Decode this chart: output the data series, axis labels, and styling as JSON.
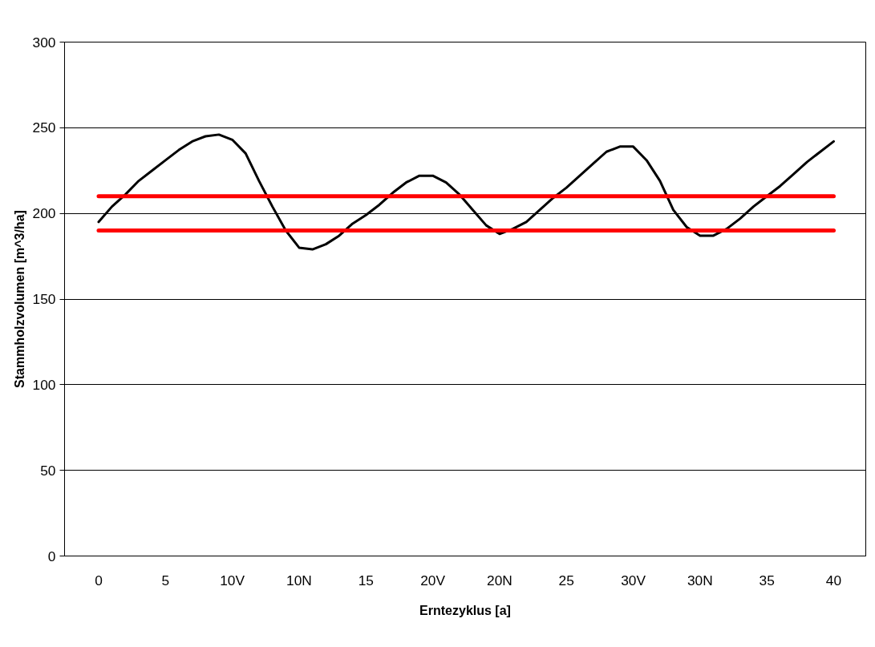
{
  "chart_data": {
    "type": "line",
    "xlabel": "Erntezyklus [a]",
    "ylabel": "Stammholzvolumen [m^3/ha]",
    "categories": [
      "0",
      null,
      null,
      null,
      null,
      "5",
      null,
      null,
      null,
      null,
      "10V",
      null,
      null,
      null,
      null,
      "10N",
      null,
      null,
      null,
      null,
      "15",
      null,
      null,
      null,
      null,
      "20V",
      null,
      null,
      null,
      null,
      "20N",
      null,
      null,
      null,
      null,
      "25",
      null,
      null,
      null,
      null,
      "30V",
      null,
      null,
      null,
      null,
      "30N",
      null,
      null,
      null,
      null,
      "35",
      null,
      null,
      null,
      null,
      "40"
    ],
    "series": [
      {
        "color": "#000000",
        "values": [
          195,
          204,
          211,
          219,
          225,
          231,
          237,
          242,
          245,
          246,
          243,
          235,
          219,
          204,
          190,
          180,
          179,
          182,
          187,
          194,
          199,
          205,
          212,
          218,
          222,
          222,
          218,
          211,
          202,
          193,
          188,
          191,
          195,
          202,
          209,
          215,
          222,
          229,
          236,
          239,
          239,
          231,
          219,
          202,
          192,
          187,
          187,
          191,
          197,
          204,
          210,
          216,
          223,
          230,
          236,
          242
        ]
      },
      {
        "color": "#ff0000",
        "values": [
          210,
          210,
          210,
          210,
          210,
          210,
          210,
          210,
          210,
          210,
          210,
          210,
          210,
          210,
          210,
          210,
          210,
          210,
          210,
          210,
          210,
          210,
          210,
          210,
          210,
          210,
          210,
          210,
          210,
          210,
          210,
          210,
          210,
          210,
          210,
          210,
          210,
          210,
          210,
          210,
          210,
          210,
          210,
          210,
          210,
          210,
          210,
          210,
          210,
          210,
          210,
          210,
          210,
          210,
          210,
          210
        ]
      },
      {
        "color": "#ff0000",
        "values": [
          190,
          190,
          190,
          190,
          190,
          190,
          190,
          190,
          190,
          190,
          190,
          190,
          190,
          190,
          190,
          190,
          190,
          190,
          190,
          190,
          190,
          190,
          190,
          190,
          190,
          190,
          190,
          190,
          190,
          190,
          190,
          190,
          190,
          190,
          190,
          190,
          190,
          190,
          190,
          190,
          190,
          190,
          190,
          190,
          190,
          190,
          190,
          190,
          190,
          190,
          190,
          190,
          190,
          190,
          190,
          190
        ]
      }
    ],
    "ylim": [
      0,
      300
    ],
    "yticks": [
      0,
      50,
      100,
      150,
      200,
      250,
      300
    ],
    "grid": "y"
  }
}
